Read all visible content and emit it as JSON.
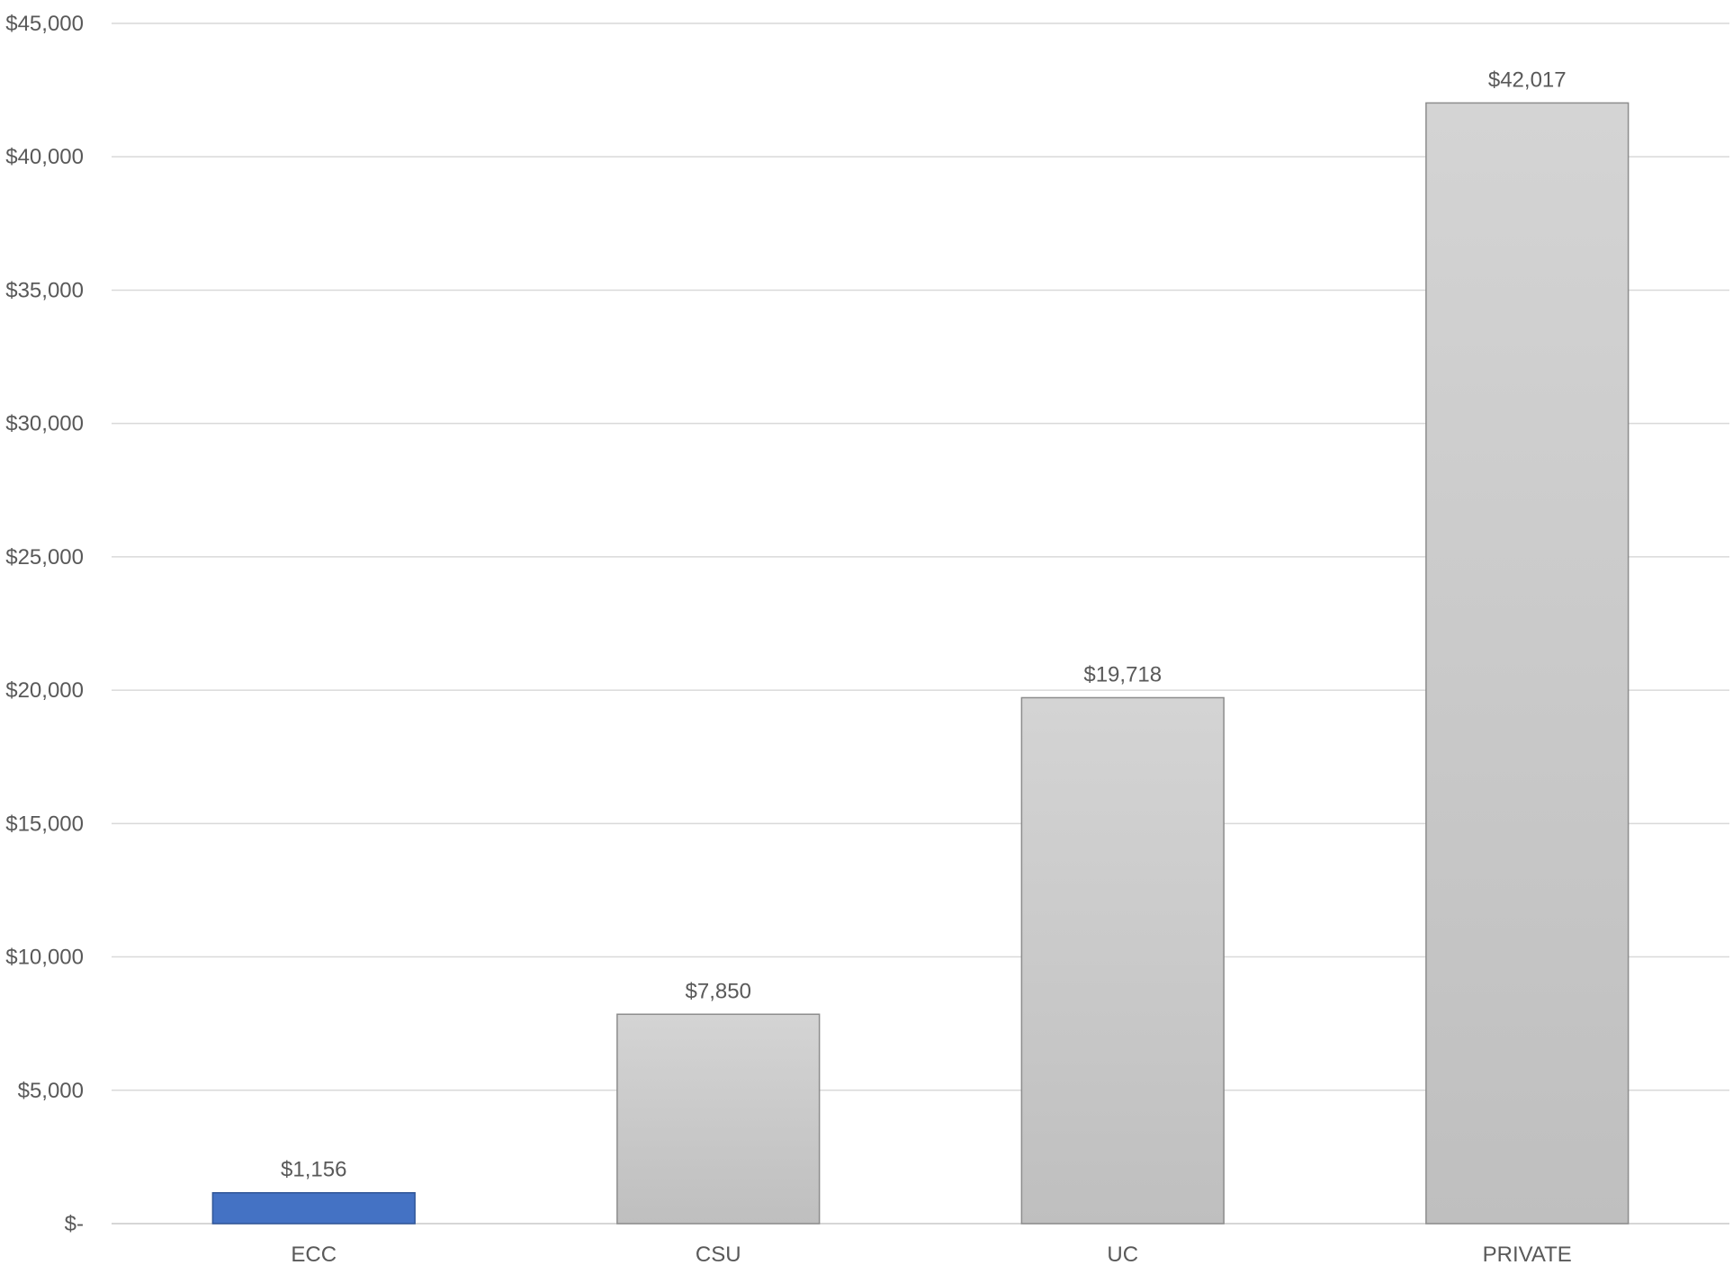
{
  "chart_data": {
    "type": "bar",
    "title": "",
    "xlabel": "",
    "ylabel": "",
    "categories": [
      "ECC",
      "CSU",
      "UC",
      "PRIVATE"
    ],
    "values": [
      1156,
      7850,
      19718,
      42017
    ],
    "data_labels": [
      "$1,156",
      "$7,850",
      "$19,718",
      "$42,017"
    ],
    "ylim": [
      0,
      45000
    ],
    "yticks": [
      0,
      5000,
      10000,
      15000,
      20000,
      25000,
      30000,
      35000,
      40000,
      45000
    ],
    "ytick_labels": [
      "$-",
      "$5,000",
      "$10,000",
      "$15,000",
      "$20,000",
      "$25,000",
      "$30,000",
      "$35,000",
      "$40,000",
      "$45,000"
    ],
    "grid": true,
    "legend": "none",
    "colors": {
      "highlight_bar": "#4472C4",
      "highlight_border": "#2F5597",
      "bar_gradient_top": "#d4d4d4",
      "bar_gradient_bottom": "#bfbfbf",
      "bar_border": "#8c8c8c",
      "gridline": "#d9d9d9",
      "text": "#595959"
    },
    "highlight_index": 0
  }
}
